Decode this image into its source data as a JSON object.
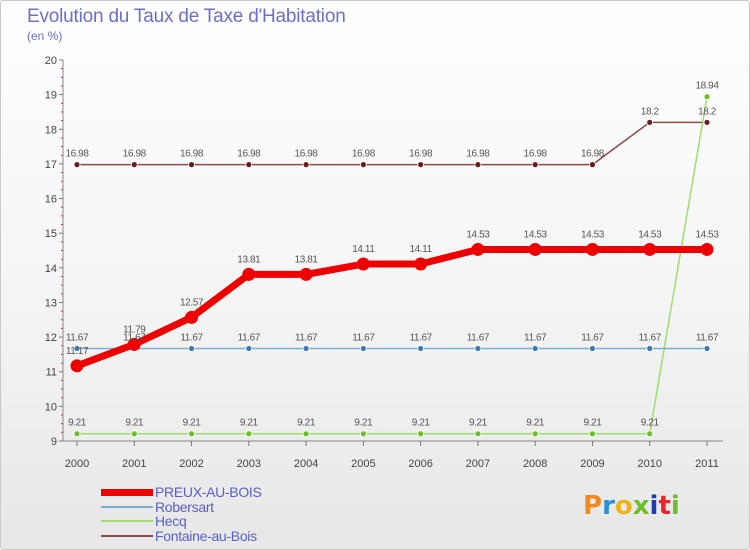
{
  "title": "Evolution du Taux de Taxe d'Habitation",
  "subtitle": "(en %)",
  "brand": {
    "text": "Proxiti",
    "letter_colors": [
      "#f08a1c",
      "#2b8fd6",
      "#f0b31c",
      "#6cbf2a",
      "#1c3ea8",
      "#e8262b",
      "#6cbf2a"
    ]
  },
  "chart_data": {
    "type": "line",
    "title": "Evolution du Taux de Taxe d'Habitation",
    "subtitle": "(en %)",
    "x": [
      2000,
      2001,
      2002,
      2003,
      2004,
      2005,
      2006,
      2007,
      2008,
      2009,
      2010,
      2011
    ],
    "xlabel": "",
    "ylabel": "",
    "ylim": [
      9,
      20
    ],
    "yticks": [
      9,
      10,
      11,
      12,
      13,
      14,
      15,
      16,
      17,
      18,
      19,
      20
    ],
    "grid": false,
    "legend_position": "bottom-left",
    "series": [
      {
        "name": "PREUX-AU-BOIS",
        "color": "#ee0000",
        "marker_color": "#ee0000",
        "line_width": 7,
        "values": [
          11.17,
          11.79,
          12.57,
          13.81,
          13.81,
          14.11,
          14.11,
          14.53,
          14.53,
          14.53,
          14.53,
          14.53
        ],
        "labels": [
          "11.17",
          "11.79",
          "12.57",
          "13.81",
          "13.81",
          "14.11",
          "14.11",
          "14.53",
          "14.53",
          "14.53",
          "14.53",
          "14.53"
        ]
      },
      {
        "name": "Robersart",
        "color": "#7aaed6",
        "marker_color": "#3a78b8",
        "line_width": 1.5,
        "values": [
          11.67,
          11.67,
          11.67,
          11.67,
          11.67,
          11.67,
          11.67,
          11.67,
          11.67,
          11.67,
          11.67,
          11.67
        ],
        "labels": [
          "11.67",
          "11.67",
          "11.67",
          "11.67",
          "11.67",
          "11.67",
          "11.67",
          "11.67",
          "11.67",
          "11.67",
          "11.67",
          "11.67"
        ]
      },
      {
        "name": "Hecq",
        "color": "#9fdc6e",
        "marker_color": "#6cbf2a",
        "line_width": 1.5,
        "values": [
          9.21,
          9.21,
          9.21,
          9.21,
          9.21,
          9.21,
          9.21,
          9.21,
          9.21,
          9.21,
          9.21,
          18.94
        ],
        "labels": [
          "9.21",
          "9.21",
          "9.21",
          "9.21",
          "9.21",
          "9.21",
          "9.21",
          "9.21",
          "9.21",
          "9.21",
          "9.21",
          "18.94"
        ]
      },
      {
        "name": "Fontaine-au-Bois",
        "color": "#8b4a4a",
        "marker_color": "#6a1a1a",
        "line_width": 1.5,
        "values": [
          16.98,
          16.98,
          16.98,
          16.98,
          16.98,
          16.98,
          16.98,
          16.98,
          16.98,
          16.98,
          18.2,
          18.2
        ],
        "labels": [
          "16.98",
          "16.98",
          "16.98",
          "16.98",
          "16.98",
          "16.98",
          "16.98",
          "16.98",
          "16.98",
          "16.98",
          "18.2",
          "18.2"
        ]
      }
    ]
  }
}
